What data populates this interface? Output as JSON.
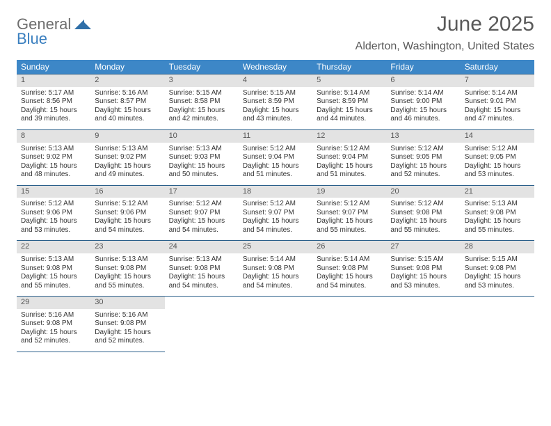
{
  "logo": {
    "text1": "General",
    "text2": "Blue"
  },
  "title": "June 2025",
  "location": "Alderton, Washington, United States",
  "header_bg": "#3d87c7",
  "daynum_bg": "#e3e3e3",
  "rule_color": "#2a5f8a",
  "days": [
    "Sunday",
    "Monday",
    "Tuesday",
    "Wednesday",
    "Thursday",
    "Friday",
    "Saturday"
  ],
  "weeks": [
    [
      {
        "n": "1",
        "sr": "5:17 AM",
        "ss": "8:56 PM",
        "dl": "15 hours and 39 minutes."
      },
      {
        "n": "2",
        "sr": "5:16 AM",
        "ss": "8:57 PM",
        "dl": "15 hours and 40 minutes."
      },
      {
        "n": "3",
        "sr": "5:15 AM",
        "ss": "8:58 PM",
        "dl": "15 hours and 42 minutes."
      },
      {
        "n": "4",
        "sr": "5:15 AM",
        "ss": "8:59 PM",
        "dl": "15 hours and 43 minutes."
      },
      {
        "n": "5",
        "sr": "5:14 AM",
        "ss": "8:59 PM",
        "dl": "15 hours and 44 minutes."
      },
      {
        "n": "6",
        "sr": "5:14 AM",
        "ss": "9:00 PM",
        "dl": "15 hours and 46 minutes."
      },
      {
        "n": "7",
        "sr": "5:14 AM",
        "ss": "9:01 PM",
        "dl": "15 hours and 47 minutes."
      }
    ],
    [
      {
        "n": "8",
        "sr": "5:13 AM",
        "ss": "9:02 PM",
        "dl": "15 hours and 48 minutes."
      },
      {
        "n": "9",
        "sr": "5:13 AM",
        "ss": "9:02 PM",
        "dl": "15 hours and 49 minutes."
      },
      {
        "n": "10",
        "sr": "5:13 AM",
        "ss": "9:03 PM",
        "dl": "15 hours and 50 minutes."
      },
      {
        "n": "11",
        "sr": "5:12 AM",
        "ss": "9:04 PM",
        "dl": "15 hours and 51 minutes."
      },
      {
        "n": "12",
        "sr": "5:12 AM",
        "ss": "9:04 PM",
        "dl": "15 hours and 51 minutes."
      },
      {
        "n": "13",
        "sr": "5:12 AM",
        "ss": "9:05 PM",
        "dl": "15 hours and 52 minutes."
      },
      {
        "n": "14",
        "sr": "5:12 AM",
        "ss": "9:05 PM",
        "dl": "15 hours and 53 minutes."
      }
    ],
    [
      {
        "n": "15",
        "sr": "5:12 AM",
        "ss": "9:06 PM",
        "dl": "15 hours and 53 minutes."
      },
      {
        "n": "16",
        "sr": "5:12 AM",
        "ss": "9:06 PM",
        "dl": "15 hours and 54 minutes."
      },
      {
        "n": "17",
        "sr": "5:12 AM",
        "ss": "9:07 PM",
        "dl": "15 hours and 54 minutes."
      },
      {
        "n": "18",
        "sr": "5:12 AM",
        "ss": "9:07 PM",
        "dl": "15 hours and 54 minutes."
      },
      {
        "n": "19",
        "sr": "5:12 AM",
        "ss": "9:07 PM",
        "dl": "15 hours and 55 minutes."
      },
      {
        "n": "20",
        "sr": "5:12 AM",
        "ss": "9:08 PM",
        "dl": "15 hours and 55 minutes."
      },
      {
        "n": "21",
        "sr": "5:13 AM",
        "ss": "9:08 PM",
        "dl": "15 hours and 55 minutes."
      }
    ],
    [
      {
        "n": "22",
        "sr": "5:13 AM",
        "ss": "9:08 PM",
        "dl": "15 hours and 55 minutes."
      },
      {
        "n": "23",
        "sr": "5:13 AM",
        "ss": "9:08 PM",
        "dl": "15 hours and 55 minutes."
      },
      {
        "n": "24",
        "sr": "5:13 AM",
        "ss": "9:08 PM",
        "dl": "15 hours and 54 minutes."
      },
      {
        "n": "25",
        "sr": "5:14 AM",
        "ss": "9:08 PM",
        "dl": "15 hours and 54 minutes."
      },
      {
        "n": "26",
        "sr": "5:14 AM",
        "ss": "9:08 PM",
        "dl": "15 hours and 54 minutes."
      },
      {
        "n": "27",
        "sr": "5:15 AM",
        "ss": "9:08 PM",
        "dl": "15 hours and 53 minutes."
      },
      {
        "n": "28",
        "sr": "5:15 AM",
        "ss": "9:08 PM",
        "dl": "15 hours and 53 minutes."
      }
    ],
    [
      {
        "n": "29",
        "sr": "5:16 AM",
        "ss": "9:08 PM",
        "dl": "15 hours and 52 minutes."
      },
      {
        "n": "30",
        "sr": "5:16 AM",
        "ss": "9:08 PM",
        "dl": "15 hours and 52 minutes."
      },
      null,
      null,
      null,
      null,
      null
    ]
  ],
  "labels": {
    "sunrise": "Sunrise: ",
    "sunset": "Sunset: ",
    "daylight": "Daylight: "
  }
}
